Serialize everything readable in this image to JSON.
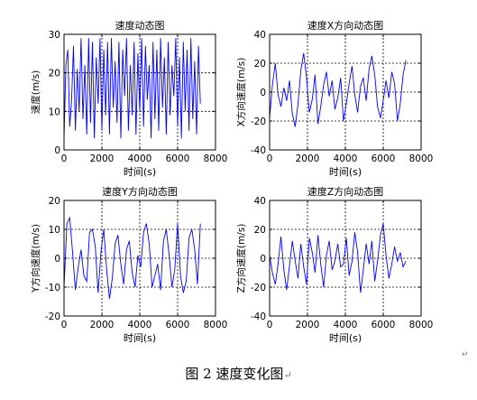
{
  "caption": {
    "text": "图 2  速度变化图",
    "end_mark": "↵"
  },
  "side_mark": "↵",
  "chart_data": [
    {
      "type": "line",
      "title": "速度动态图",
      "xlabel": "时间(s)",
      "ylabel": "速度(m/s)",
      "xlim": [
        0,
        8000
      ],
      "ylim": [
        0,
        30
      ],
      "xticks": [
        0,
        2000,
        4000,
        6000,
        8000
      ],
      "yticks": [
        0,
        10,
        20,
        30
      ],
      "grid": "dashed",
      "color": "#0000ff",
      "series": [
        {
          "x": [
            0,
            100,
            200,
            300,
            400,
            500,
            600,
            700,
            800,
            900,
            1000,
            1100,
            1200,
            1300,
            1400,
            1500,
            1600,
            1700,
            1800,
            1900,
            2000,
            2100,
            2200,
            2300,
            2400,
            2500,
            2600,
            2700,
            2800,
            2900,
            3000,
            3100,
            3200,
            3300,
            3400,
            3500,
            3600,
            3700,
            3800,
            3900,
            4000,
            4100,
            4200,
            4300,
            4400,
            4500,
            4600,
            4700,
            4800,
            4900,
            5000,
            5100,
            5200,
            5300,
            5400,
            5500,
            5600,
            5700,
            5800,
            5900,
            6000,
            6100,
            6200,
            6300,
            6400,
            6500,
            6600,
            6700,
            6800,
            6900,
            7000,
            7100,
            7200
          ],
          "y": [
            3,
            22,
            26,
            6,
            13,
            27,
            5,
            21,
            10,
            29,
            8,
            22,
            4,
            29,
            7,
            28,
            3,
            24,
            12,
            29,
            5,
            26,
            9,
            28,
            4,
            29,
            11,
            23,
            7,
            28,
            3,
            26,
            14,
            29,
            5,
            22,
            9,
            28,
            4,
            25,
            10,
            29,
            6,
            27,
            13,
            22,
            3,
            28,
            8,
            26,
            5,
            29,
            11,
            24,
            4,
            28,
            9,
            22,
            14,
            29,
            6,
            24,
            3,
            28,
            10,
            26,
            5,
            29,
            8,
            23,
            4,
            27,
            12
          ]
        }
      ]
    },
    {
      "type": "line",
      "title": "速度X方向动态图",
      "xlabel": "时间(s)",
      "ylabel": "X方向速度(m/s)",
      "xlim": [
        0,
        8000
      ],
      "ylim": [
        -40,
        40
      ],
      "xticks": [
        0,
        2000,
        4000,
        6000,
        8000
      ],
      "yticks": [
        -40,
        -20,
        0,
        20,
        40
      ],
      "grid": "dashed",
      "color": "#0000ff",
      "series": [
        {
          "x": [
            0,
            150,
            300,
            450,
            600,
            750,
            900,
            1050,
            1200,
            1350,
            1500,
            1650,
            1800,
            1950,
            2100,
            2250,
            2400,
            2550,
            2700,
            2850,
            3000,
            3150,
            3300,
            3450,
            3600,
            3750,
            3900,
            4050,
            4200,
            4350,
            4500,
            4650,
            4800,
            4950,
            5100,
            5250,
            5400,
            5550,
            5700,
            5850,
            6000,
            6150,
            6300,
            6450,
            6600,
            6750,
            6900,
            7050,
            7200
          ],
          "y": [
            -18,
            5,
            20,
            -2,
            -10,
            3,
            -6,
            8,
            -15,
            -24,
            -8,
            15,
            27,
            10,
            -14,
            -5,
            12,
            -22,
            -10,
            5,
            14,
            -3,
            8,
            -12,
            -4,
            10,
            -20,
            -8,
            6,
            18,
            -2,
            -14,
            4,
            10,
            -6,
            16,
            25,
            12,
            -10,
            -18,
            -6,
            8,
            -4,
            14,
            6,
            -20,
            -8,
            12,
            22
          ]
        }
      ]
    },
    {
      "type": "line",
      "title": "速度Y方向动态图",
      "xlabel": "时间(s)",
      "ylabel": "Y方向速度(m/s)",
      "xlim": [
        0,
        8000
      ],
      "ylim": [
        -20,
        20
      ],
      "xticks": [
        0,
        2000,
        4000,
        6000,
        8000
      ],
      "yticks": [
        -20,
        -10,
        0,
        10,
        20
      ],
      "grid": "dashed",
      "color": "#0000ff",
      "series": [
        {
          "x": [
            0,
            150,
            300,
            450,
            600,
            750,
            900,
            1050,
            1200,
            1350,
            1500,
            1650,
            1800,
            1950,
            2100,
            2250,
            2400,
            2550,
            2700,
            2850,
            3000,
            3150,
            3300,
            3450,
            3600,
            3750,
            3900,
            4050,
            4200,
            4350,
            4500,
            4650,
            4800,
            4950,
            5100,
            5250,
            5400,
            5550,
            5700,
            5850,
            6000,
            6150,
            6300,
            6450,
            6600,
            6750,
            6900,
            7050,
            7200
          ],
          "y": [
            -10,
            12,
            14,
            2,
            -11,
            -3,
            3,
            -6,
            -8,
            9,
            10,
            4,
            -12,
            2,
            10,
            -4,
            -14,
            -7,
            5,
            8,
            -2,
            -9,
            3,
            6,
            -5,
            -10,
            1,
            -3,
            9,
            12,
            5,
            -10,
            -6,
            -2,
            -11,
            6,
            10,
            1,
            -10,
            -4,
            12,
            -6,
            -12,
            -8,
            7,
            10,
            3,
            -9,
            12
          ]
        }
      ]
    },
    {
      "type": "line",
      "title": "速度Z方向动态图",
      "xlabel": "时间(s)",
      "ylabel": "Z方向速度(m/s)",
      "xlim": [
        0,
        8000
      ],
      "ylim": [
        -40,
        40
      ],
      "xticks": [
        0,
        2000,
        4000,
        6000,
        8000
      ],
      "yticks": [
        -40,
        -20,
        0,
        20,
        40
      ],
      "grid": "dashed",
      "color": "#0000ff",
      "series": [
        {
          "x": [
            0,
            150,
            300,
            450,
            600,
            750,
            900,
            1050,
            1200,
            1350,
            1500,
            1650,
            1800,
            1950,
            2100,
            2250,
            2400,
            2550,
            2700,
            2850,
            3000,
            3150,
            3300,
            3450,
            3600,
            3750,
            3900,
            4050,
            4200,
            4350,
            4500,
            4650,
            4800,
            4950,
            5100,
            5250,
            5400,
            5550,
            5700,
            5850,
            6000,
            6150,
            6300,
            6450,
            6600,
            6750,
            6900,
            7050,
            7200
          ],
          "y": [
            2,
            -10,
            -18,
            -4,
            15,
            -8,
            -22,
            -5,
            12,
            -2,
            -14,
            10,
            -6,
            -18,
            14,
            4,
            -10,
            16,
            -4,
            -20,
            2,
            12,
            -8,
            -2,
            10,
            -6,
            -4,
            14,
            -12,
            -2,
            18,
            4,
            -24,
            -8,
            10,
            -4,
            12,
            -16,
            -2,
            16,
            24,
            2,
            -14,
            -4,
            8,
            -2,
            4,
            -6,
            -2
          ]
        }
      ]
    }
  ]
}
